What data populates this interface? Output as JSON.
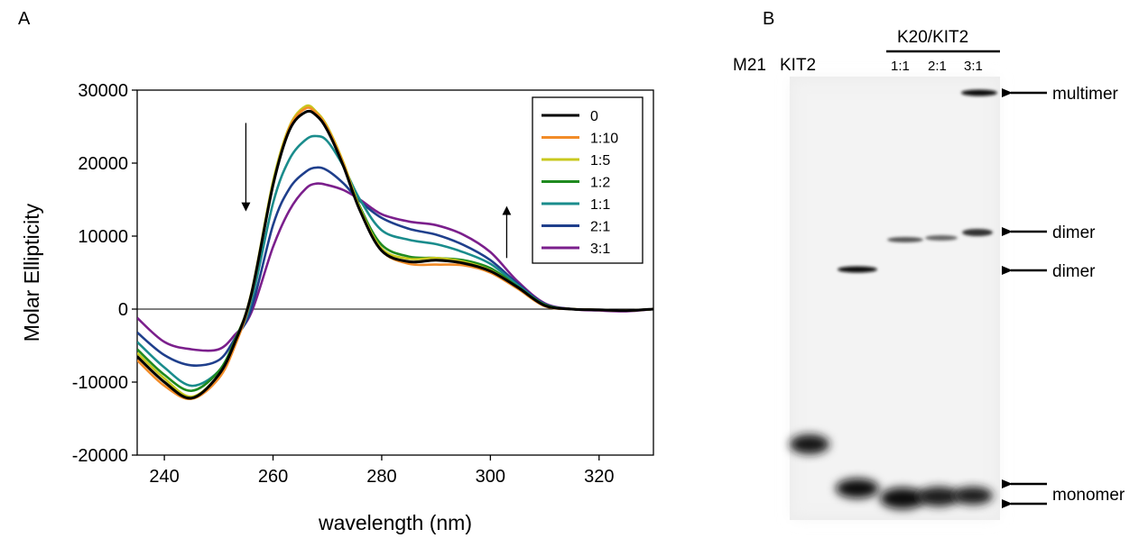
{
  "panels": {
    "a_letter": "A",
    "b_letter": "B"
  },
  "chart_data": {
    "type": "line",
    "title": "",
    "xlabel": "wavelength (nm)",
    "ylabel": "Molar Ellipticity",
    "xlim": [
      235,
      330
    ],
    "ylim": [
      -20000,
      30000
    ],
    "xticks": [
      240,
      260,
      280,
      300,
      320
    ],
    "yticks": [
      -20000,
      -10000,
      0,
      10000,
      20000,
      30000
    ],
    "grid": false,
    "legend_position": "top-right",
    "annotations": [
      {
        "type": "arrow",
        "direction": "down",
        "x": 255,
        "y_from": 25500,
        "y_to": 14000
      },
      {
        "type": "arrow",
        "direction": "up",
        "x": 303,
        "y_from": 7000,
        "y_to": 13500
      }
    ],
    "series": [
      {
        "name": "0",
        "color": "#000000",
        "x": [
          235,
          240,
          245,
          250,
          253,
          256,
          260,
          263,
          266,
          268,
          270,
          273,
          276,
          280,
          285,
          290,
          295,
          300,
          305,
          310,
          315,
          320,
          325,
          330
        ],
        "y": [
          -6500,
          -10000,
          -12200,
          -9000,
          -4500,
          2000,
          17000,
          24500,
          27000,
          26500,
          24500,
          19500,
          13500,
          8000,
          6500,
          6700,
          6300,
          5200,
          3000,
          500,
          0,
          -100,
          -200,
          0
        ]
      },
      {
        "name": "1:10",
        "color": "#f28c28",
        "x": [
          235,
          240,
          245,
          250,
          253,
          256,
          260,
          263,
          266,
          268,
          270,
          273,
          276,
          280,
          285,
          290,
          295,
          300,
          305,
          310,
          315,
          320,
          325,
          330
        ],
        "y": [
          -7000,
          -10500,
          -12300,
          -9500,
          -5000,
          1800,
          17000,
          24800,
          27500,
          26800,
          24800,
          19800,
          13500,
          8000,
          6200,
          6100,
          6000,
          5000,
          2800,
          400,
          0,
          -100,
          -200,
          0
        ]
      },
      {
        "name": "1:5",
        "color": "#c8c81e",
        "x": [
          235,
          240,
          245,
          250,
          253,
          256,
          260,
          263,
          266,
          268,
          270,
          273,
          276,
          280,
          285,
          290,
          295,
          300,
          305,
          310,
          315,
          320,
          325,
          330
        ],
        "y": [
          -6000,
          -9500,
          -12000,
          -9000,
          -4500,
          2200,
          17500,
          25000,
          27800,
          27000,
          25000,
          20000,
          13800,
          8300,
          6900,
          7000,
          6500,
          5300,
          3000,
          500,
          0,
          -100,
          -200,
          0
        ]
      },
      {
        "name": "1:2",
        "color": "#1f8a1f",
        "x": [
          235,
          240,
          245,
          250,
          253,
          256,
          260,
          263,
          266,
          268,
          270,
          273,
          276,
          280,
          285,
          290,
          295,
          300,
          305,
          310,
          315,
          320,
          325,
          330
        ],
        "y": [
          -5500,
          -9000,
          -11200,
          -8500,
          -4200,
          2000,
          17000,
          24500,
          27000,
          26600,
          24600,
          19800,
          14000,
          8800,
          7200,
          7000,
          6700,
          5600,
          3100,
          600,
          0,
          -100,
          -200,
          0
        ]
      },
      {
        "name": "1:1",
        "color": "#1a8c8c",
        "x": [
          235,
          240,
          245,
          250,
          253,
          256,
          260,
          263,
          266,
          268,
          270,
          273,
          276,
          280,
          285,
          290,
          295,
          300,
          305,
          310,
          315,
          320,
          325,
          330
        ],
        "y": [
          -4500,
          -8000,
          -10500,
          -8500,
          -4500,
          1000,
          14500,
          20500,
          23200,
          23700,
          23000,
          19500,
          15000,
          10800,
          9500,
          8900,
          7800,
          6200,
          3300,
          600,
          0,
          -100,
          -200,
          0
        ]
      },
      {
        "name": "2:1",
        "color": "#1f3f8c",
        "x": [
          235,
          240,
          245,
          250,
          253,
          256,
          260,
          263,
          266,
          268,
          270,
          273,
          276,
          280,
          285,
          290,
          295,
          300,
          305,
          310,
          315,
          320,
          325,
          330
        ],
        "y": [
          -3200,
          -6300,
          -7700,
          -7000,
          -4000,
          0,
          11500,
          16500,
          18800,
          19400,
          19000,
          17200,
          14800,
          12500,
          11000,
          10200,
          8800,
          6700,
          3500,
          700,
          0,
          -100,
          -200,
          0
        ]
      },
      {
        "name": "3:1",
        "color": "#7b1f8c",
        "x": [
          235,
          240,
          245,
          250,
          253,
          256,
          260,
          263,
          266,
          268,
          270,
          273,
          276,
          280,
          285,
          290,
          295,
          300,
          305,
          310,
          315,
          320,
          325,
          330
        ],
        "y": [
          -1200,
          -4500,
          -5500,
          -5500,
          -3500,
          -500,
          8500,
          13500,
          16500,
          17200,
          17000,
          16300,
          15000,
          13000,
          12000,
          11500,
          10200,
          7800,
          3800,
          800,
          0,
          -200,
          -300,
          0
        ]
      }
    ]
  },
  "gel": {
    "lanes": [
      "M21",
      "KIT2",
      "1:1",
      "2:1",
      "3:1"
    ],
    "group_label": "K20/KIT2",
    "band_labels": {
      "multimer": "multimer",
      "dimer_upper": "dimer",
      "dimer_lower": "dimer",
      "monomer": "monomer"
    }
  }
}
